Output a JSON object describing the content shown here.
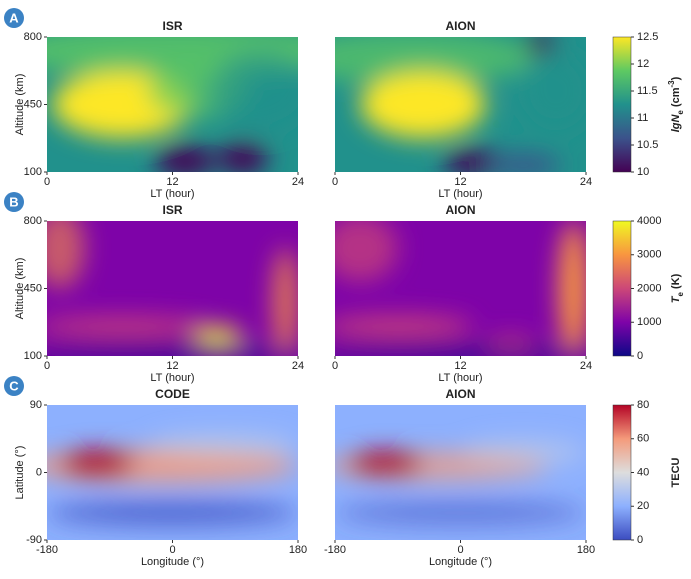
{
  "chart_data": [
    {
      "type": "heatmap",
      "label": "A",
      "titles": [
        "ISR",
        "AION"
      ],
      "xlabel": "LT (hour)",
      "ylabel": "Altitude (km)",
      "xlim": [
        0,
        24
      ],
      "xticks": [
        0,
        12,
        24
      ],
      "ylim": [
        100,
        800
      ],
      "yticks": [
        100,
        450,
        800
      ],
      "colorbar": {
        "label": [
          "lgN",
          "e",
          " (cm",
          "-3",
          ")"
        ],
        "lim": [
          10,
          12.5
        ],
        "ticks": [
          10,
          10.5,
          11,
          11.5,
          12,
          12.5
        ],
        "colors": [
          "#440154",
          "#3b528b",
          "#21918c",
          "#5ec962",
          "#fde725"
        ]
      }
    },
    {
      "type": "heatmap",
      "label": "B",
      "titles": [
        "ISR",
        "AION"
      ],
      "xlabel": "LT (hour)",
      "ylabel": "Altitude (km)",
      "xlim": [
        0,
        24
      ],
      "xticks": [
        0,
        12,
        24
      ],
      "ylim": [
        100,
        800
      ],
      "yticks": [
        100,
        450,
        800
      ],
      "colorbar": {
        "label": [
          "T",
          "e",
          " (K)"
        ],
        "lim": [
          0,
          4000
        ],
        "ticks": [
          0,
          1000,
          2000,
          3000,
          4000
        ],
        "colors": [
          "#0d0887",
          "#7e03a8",
          "#cc4778",
          "#f89540",
          "#f0f921"
        ]
      }
    },
    {
      "type": "heatmap",
      "label": "C",
      "titles": [
        "CODE",
        "AION"
      ],
      "xlabel": "Longitude (°)",
      "ylabel": "Latitude (°)",
      "xlim": [
        -180,
        180
      ],
      "xticks": [
        -180,
        0,
        180
      ],
      "ylim": [
        -90,
        90
      ],
      "yticks": [
        -90,
        0,
        90
      ],
      "colorbar": {
        "label": "TECU",
        "lim": [
          0,
          80
        ],
        "ticks": [
          0,
          20,
          40,
          60,
          80
        ],
        "colors": [
          "#3b4cc0",
          "#8db0fe",
          "#dddddd",
          "#f49a7b",
          "#b40426"
        ]
      }
    }
  ]
}
